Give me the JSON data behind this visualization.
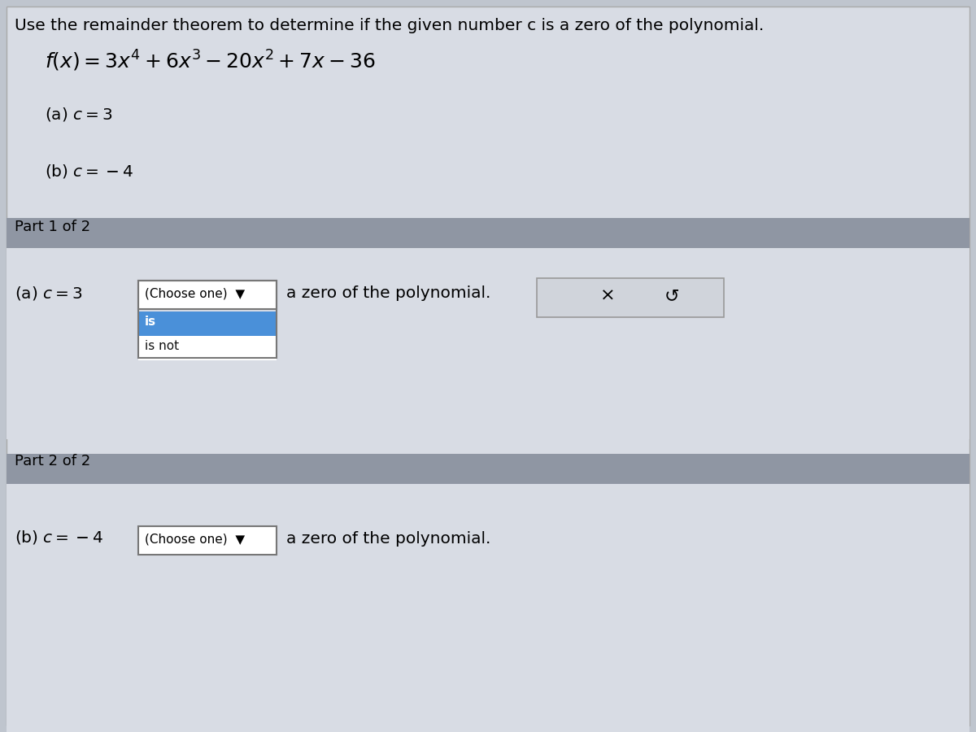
{
  "title": "Use the remainder theorem to determine if the given number c is a zero of the polynomial.",
  "bg_color": "#bfc5ce",
  "panel_bg": "#d8dce4",
  "header_bg": "#8f96a3",
  "part1_header": "Part 1 of 2",
  "part2_header": "Part 2 of 2",
  "dropdown_bg": "#ffffff",
  "dropdown_border": "#777777",
  "selected_option_bg": "#4a90d9",
  "selected_option_color": "#ffffff",
  "unselected_option_bg": "#ffffff",
  "unselected_option_color": "#111111",
  "button_box_bg": "#d0d4db",
  "button_box_border": "#999999",
  "x_symbol": "×",
  "refresh_symbol": "↺",
  "after_dropdown": "a zero of the polynomial.",
  "title_fontsize": 14.5,
  "body_fontsize": 13.5,
  "header_fontsize": 13,
  "math_fontsize": 16
}
